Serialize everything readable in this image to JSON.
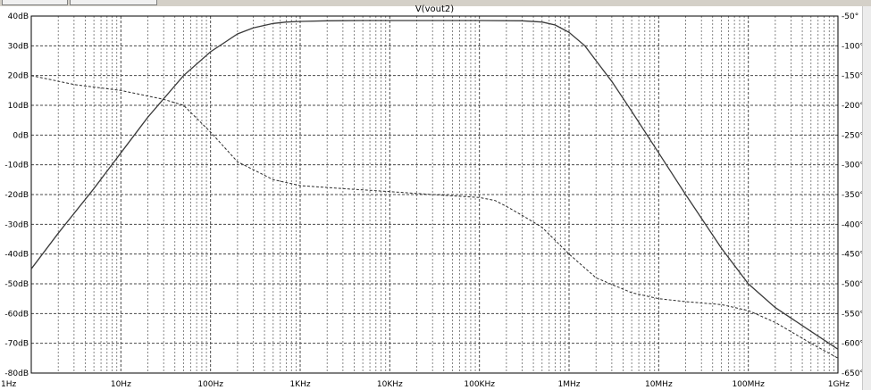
{
  "chart_data": {
    "type": "line",
    "title": "V(vout2)",
    "x_scale": "log",
    "xlim": [
      1,
      1000000000
    ],
    "x_tick_values": [
      1,
      10,
      100,
      1000,
      10000,
      100000,
      1000000,
      10000000,
      100000000,
      1000000000
    ],
    "x_tick_labels": [
      "1Hz",
      "10Hz",
      "100Hz",
      "1KHz",
      "10KHz",
      "100KHz",
      "1MHz",
      "10MHz",
      "100MHz",
      "1GHz"
    ],
    "ylim_left": [
      -80,
      40
    ],
    "y_left_ticks": [
      40,
      30,
      20,
      10,
      0,
      -10,
      -20,
      -30,
      -40,
      -50,
      -60,
      -70,
      -80
    ],
    "y_left_labels": [
      "40dB",
      "30dB",
      "20dB",
      "10dB",
      "0dB",
      "-10dB",
      "-20dB",
      "-30dB",
      "-40dB",
      "-50dB",
      "-60dB",
      "-70dB",
      "-80dB"
    ],
    "ylim_right": [
      -650,
      -50
    ],
    "y_right_ticks": [
      -50,
      -100,
      -150,
      -200,
      -250,
      -300,
      -350,
      -400,
      -450,
      -500,
      -550,
      -600,
      -650
    ],
    "y_right_labels": [
      "-50°",
      "-100°",
      "-150°",
      "-200°",
      "-250°",
      "-300°",
      "-350°",
      "-400°",
      "-450°",
      "-500°",
      "-550°",
      "-600°",
      "-650°"
    ],
    "grid": true,
    "series": [
      {
        "style": "solid",
        "axis": "left",
        "x": [
          1,
          2,
          5,
          10,
          20,
          50,
          100,
          200,
          300,
          500,
          700,
          1000,
          2000,
          5000,
          10000,
          100000,
          300000,
          500000,
          700000,
          1000000,
          1500000,
          2000000,
          3000000,
          5000000,
          10000000,
          20000000,
          50000000,
          100000000,
          200000000,
          500000000,
          1000000000
        ],
        "y": [
          -45,
          -33,
          -18,
          -6,
          6,
          20,
          28,
          34,
          36,
          37.5,
          38,
          38.2,
          38.4,
          38.5,
          38.5,
          38.5,
          38.4,
          38,
          37,
          34.5,
          30,
          25,
          18,
          8,
          -6,
          -20,
          -38,
          -50,
          -58,
          -66,
          -72
        ]
      },
      {
        "style": "dashed",
        "axis": "right",
        "x": [
          1,
          3,
          10,
          30,
          50,
          100,
          200,
          500,
          1000,
          3000,
          10000,
          30000,
          100000,
          150000,
          200000,
          300000,
          500000,
          1000000,
          2000000,
          5000000,
          10000000,
          20000000,
          50000000,
          100000000,
          200000000,
          500000000,
          1000000000
        ],
        "y": [
          -150,
          -165,
          -175,
          -190,
          -200,
          -245,
          -295,
          -325,
          -335,
          -340,
          -345,
          -350,
          -355,
          -360,
          -370,
          -385,
          -405,
          -450,
          -490,
          -515,
          -525,
          -530,
          -535,
          -545,
          -565,
          -600,
          -625
        ]
      }
    ]
  }
}
